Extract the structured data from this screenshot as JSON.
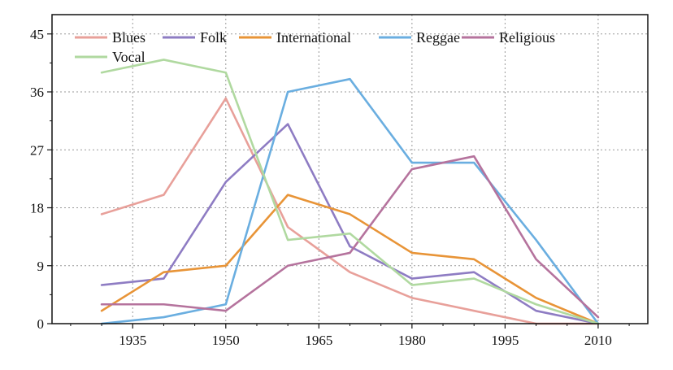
{
  "chart_data": {
    "type": "line",
    "title": "",
    "xlabel": "",
    "ylabel": "",
    "x": [
      1930,
      1940,
      1950,
      1960,
      1970,
      1980,
      1990,
      2000,
      2010
    ],
    "xticks": [
      1935,
      1950,
      1965,
      1980,
      1995,
      2010
    ],
    "yticks": [
      0,
      9,
      18,
      27,
      36,
      45
    ],
    "xlim": [
      1922,
      2018
    ],
    "ylim": [
      0,
      48
    ],
    "grid": true,
    "legend_position": "top-left",
    "series": [
      {
        "name": "Blues",
        "color": "#e8a09a",
        "values": [
          17,
          20,
          35,
          15,
          8,
          4,
          2,
          0,
          0
        ]
      },
      {
        "name": "Folk",
        "color": "#8e7cc3",
        "values": [
          6,
          7,
          22,
          31,
          12,
          7,
          8,
          2,
          0
        ]
      },
      {
        "name": "International",
        "color": "#e89437",
        "values": [
          2,
          8,
          9,
          20,
          17,
          11,
          10,
          4,
          0
        ]
      },
      {
        "name": "Reggae",
        "color": "#6aaee0",
        "values": [
          0,
          1,
          3,
          36,
          38,
          25,
          25,
          13,
          0
        ]
      },
      {
        "name": "Religious",
        "color": "#b5739d",
        "values": [
          3,
          3,
          2,
          9,
          11,
          24,
          26,
          10,
          1
        ]
      },
      {
        "name": "Vocal",
        "color": "#b0d9a0",
        "values": [
          39,
          41,
          39,
          13,
          14,
          6,
          7,
          3,
          0
        ]
      }
    ]
  }
}
